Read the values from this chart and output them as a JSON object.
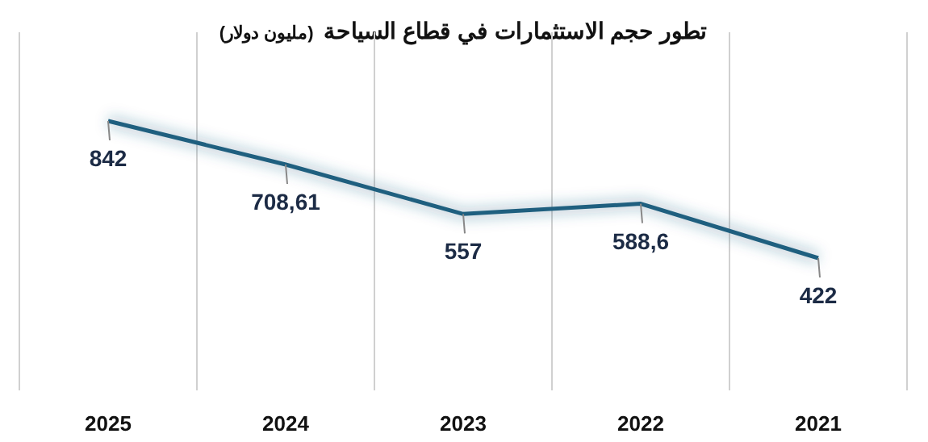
{
  "chart_data": {
    "type": "line",
    "title": "تطور حجم الاستثمارات في قطاع السياحة",
    "subtitle": "(مليون دولار)",
    "categories": [
      "2025",
      "2024",
      "2023",
      "2022",
      "2021"
    ],
    "series": [
      {
        "color": "#1f5f7f",
        "values": [
          842,
          708.61,
          557,
          588.6,
          422
        ],
        "value_labels": [
          "842",
          "708,61",
          "557",
          "588,6",
          "422"
        ]
      }
    ],
    "grid": "x",
    "line_style": "solid",
    "marker": "none"
  }
}
